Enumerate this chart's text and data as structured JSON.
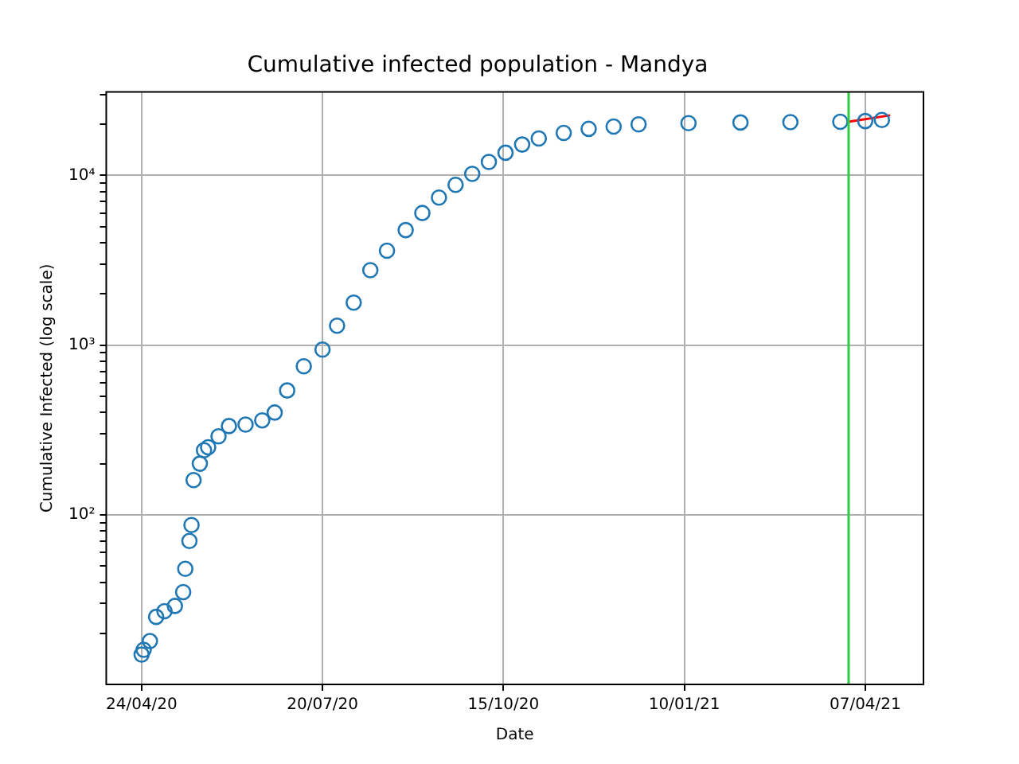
{
  "chart_data": {
    "type": "scatter",
    "title": "Cumulative infected population - Mandya",
    "xlabel": "Date",
    "ylabel": "Cumulative Infected (log scale)",
    "log": "y",
    "grid": true,
    "legend": false,
    "xlim": [
      "2020-04-07",
      "2021-05-05"
    ],
    "xticks": [
      {
        "value": "2020-04-24",
        "label": "24/04/20"
      },
      {
        "value": "2020-07-20",
        "label": "20/07/20"
      },
      {
        "value": "2020-10-15",
        "label": "15/10/20"
      },
      {
        "value": "2021-01-10",
        "label": "10/01/21"
      },
      {
        "value": "2021-04-07",
        "label": "07/04/21"
      }
    ],
    "ylim": [
      10,
      31000
    ],
    "yticks": [
      {
        "value": 20,
        "label": null
      },
      {
        "value": 30,
        "label": null
      },
      {
        "value": 40,
        "label": null
      },
      {
        "value": 50,
        "label": null
      },
      {
        "value": 60,
        "label": null
      },
      {
        "value": 70,
        "label": null
      },
      {
        "value": 80,
        "label": null
      },
      {
        "value": 90,
        "label": null
      },
      {
        "value": 100,
        "label": "10²"
      },
      {
        "value": 200,
        "label": null
      },
      {
        "value": 300,
        "label": null
      },
      {
        "value": 400,
        "label": null
      },
      {
        "value": 500,
        "label": null
      },
      {
        "value": 600,
        "label": null
      },
      {
        "value": 700,
        "label": null
      },
      {
        "value": 800,
        "label": null
      },
      {
        "value": 900,
        "label": null
      },
      {
        "value": 1000,
        "label": "10³"
      },
      {
        "value": 2000,
        "label": null
      },
      {
        "value": 3000,
        "label": null
      },
      {
        "value": 4000,
        "label": null
      },
      {
        "value": 5000,
        "label": null
      },
      {
        "value": 6000,
        "label": null
      },
      {
        "value": 7000,
        "label": null
      },
      {
        "value": 8000,
        "label": null
      },
      {
        "value": 9000,
        "label": null
      },
      {
        "value": 10000,
        "label": "10⁴"
      },
      {
        "value": 20000,
        "label": null
      },
      {
        "value": 30000,
        "label": null
      }
    ],
    "ref_lines": [
      {
        "axis": "x",
        "value": "2021-03-30",
        "color": "#2ecc40"
      }
    ],
    "series": [
      {
        "color": "#1f77b4",
        "marker": "circle",
        "x": [
          "2020-04-24",
          "2020-04-25",
          "2020-04-28",
          "2020-05-01",
          "2020-05-05",
          "2020-05-10",
          "2020-05-14",
          "2020-05-15",
          "2020-05-17",
          "2020-05-18",
          "2020-05-19",
          "2020-05-22",
          "2020-05-24",
          "2020-05-26",
          "2020-05-31",
          "2020-06-05",
          "2020-06-13",
          "2020-06-21",
          "2020-06-27",
          "2020-07-03",
          "2020-07-11",
          "2020-07-20",
          "2020-07-27",
          "2020-08-04",
          "2020-08-12",
          "2020-08-20",
          "2020-08-29",
          "2020-09-06",
          "2020-09-14",
          "2020-09-22",
          "2020-09-30",
          "2020-10-08",
          "2020-10-16",
          "2020-10-24",
          "2020-11-01",
          "2020-11-13",
          "2020-11-25",
          "2020-12-07",
          "2020-12-19",
          "2021-01-12",
          "2021-02-06",
          "2021-03-02",
          "2021-03-26",
          "2021-04-07",
          "2021-04-15"
        ],
        "values": [
          15,
          16,
          18,
          25,
          27,
          29,
          35,
          48,
          70,
          87,
          160,
          200,
          240,
          250,
          290,
          333,
          340,
          360,
          400,
          540,
          750,
          940,
          1300,
          1780,
          2760,
          3600,
          4760,
          6000,
          7400,
          8800,
          10200,
          12000,
          13600,
          15200,
          16500,
          17800,
          18800,
          19400,
          20000,
          20300,
          20500,
          20600,
          20700,
          20900,
          21200
        ]
      },
      {
        "type": "line",
        "marker": "none",
        "color": "#ff0000",
        "x": [
          "2021-03-30",
          "2021-04-19"
        ],
        "values": [
          20700,
          22600
        ]
      }
    ]
  }
}
